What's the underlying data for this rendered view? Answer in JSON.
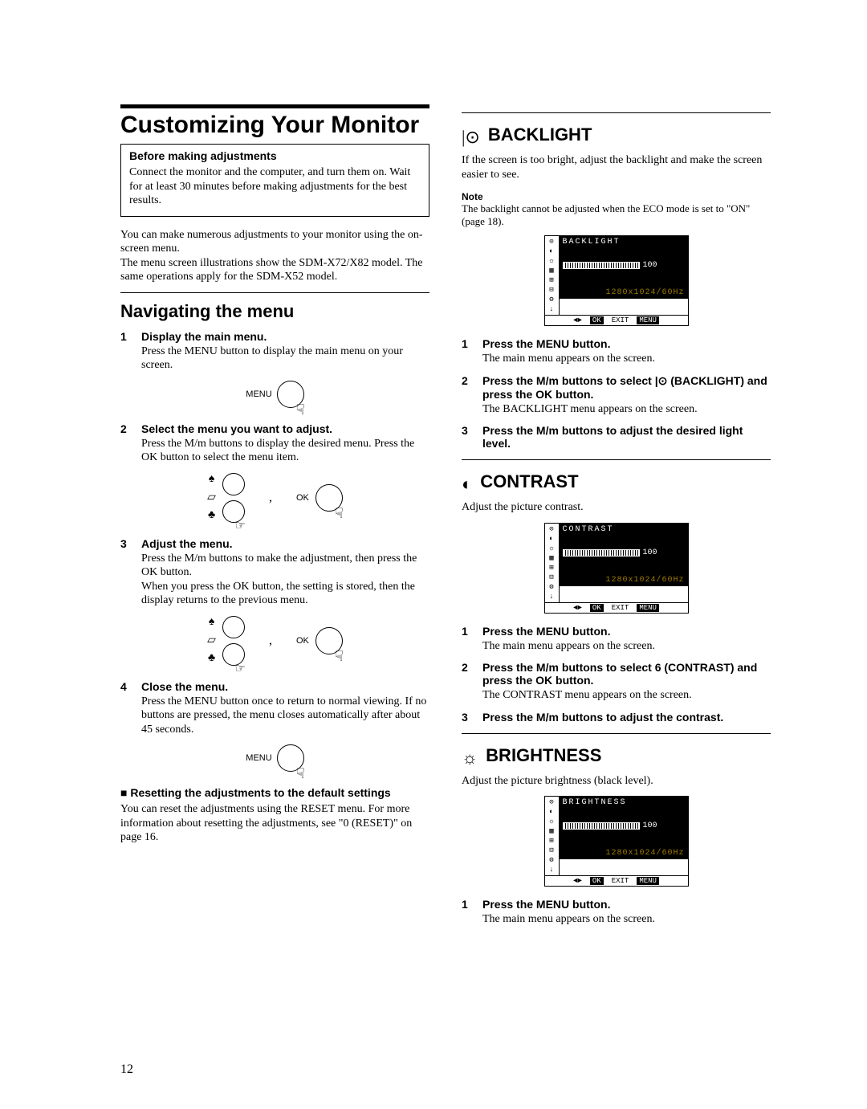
{
  "page_number": "12",
  "leftcol": {
    "h1": "Customizing Your Monitor",
    "box": {
      "title": "Before making adjustments",
      "body": "Connect the monitor and the computer, and turn them on. Wait for at least 30 minutes before making adjustments for the best results."
    },
    "intro1": "You can make numerous adjustments to your monitor using the on-screen menu.",
    "intro2": "The menu screen illustrations show the SDM-X72/X82 model. The same operations apply for the SDM-X52 model.",
    "nav_h2": "Navigating the menu",
    "steps": [
      {
        "num": "1",
        "title": "Display the main menu.",
        "text": "Press the MENU button to display the main menu on your screen."
      },
      {
        "num": "2",
        "title": "Select the menu you want to adjust.",
        "text": "Press the M/m buttons to display the desired menu. Press the OK button to select the menu item."
      },
      {
        "num": "3",
        "title": "Adjust the menu.",
        "text": "Press the M/m buttons to make the adjustment, then press the OK button.",
        "text2": "When you press the OK button, the setting is stored, then the display returns to the previous menu."
      },
      {
        "num": "4",
        "title": "Close the menu.",
        "text": "Press the MENU button once to return to normal viewing. If no buttons are pressed, the menu closes automatically after about 45 seconds."
      }
    ],
    "menu_label": "MENU",
    "ok_label": "OK",
    "reset_title": "■  Resetting the adjustments to the default settings",
    "reset_text": "You can reset the adjustments using the RESET menu. For more information about resetting the adjustments, see \"0 (RESET)\" on page 16."
  },
  "rightcol": {
    "sections": [
      {
        "icon": "|⊙",
        "title": "BACKLIGHT",
        "intro": "If the screen is too bright, adjust the backlight and make the screen easier to see.",
        "note_label": "Note",
        "note": "The backlight cannot be adjusted when the ECO mode is set to \"ON\" (page 18).",
        "osd": {
          "title": "BACKLIGHT",
          "value": "100",
          "res": "1280x1024/60Hz"
        },
        "steps": [
          {
            "num": "1",
            "title": "Press the MENU button.",
            "text": "The main menu appears on the screen."
          },
          {
            "num": "2",
            "title": "Press the M/m buttons to select |⊙ (BACKLIGHT) and press the OK button.",
            "text": "The BACKLIGHT menu appears on the screen."
          },
          {
            "num": "3",
            "title": "Press the M/m buttons to adjust the desired light level.",
            "text": ""
          }
        ]
      },
      {
        "icon": "◐",
        "title": "CONTRAST",
        "intro": "Adjust the picture contrast.",
        "osd": {
          "title": "CONTRAST",
          "value": "100",
          "res": "1280x1024/60Hz"
        },
        "steps": [
          {
            "num": "1",
            "title": "Press the MENU button.",
            "text": "The main menu appears on the screen."
          },
          {
            "num": "2",
            "title": "Press the M/m buttons to select 6 (CONTRAST) and press the OK button.",
            "text": "The CONTRAST menu appears on the screen."
          },
          {
            "num": "3",
            "title": "Press the M/m buttons to adjust the contrast.",
            "text": ""
          }
        ]
      },
      {
        "icon": "☼",
        "title": "BRIGHTNESS",
        "intro": "Adjust the picture brightness (black level).",
        "osd": {
          "title": "BRIGHTNESS",
          "value": "100",
          "res": "1280x1024/60Hz"
        },
        "steps": [
          {
            "num": "1",
            "title": "Press the MENU button.",
            "text": "The main menu appears on the screen."
          }
        ]
      }
    ],
    "osd_foot": {
      "left": "◄►",
      "ok": "OK",
      "exit": "EXIT",
      "menu": "MENU"
    }
  }
}
